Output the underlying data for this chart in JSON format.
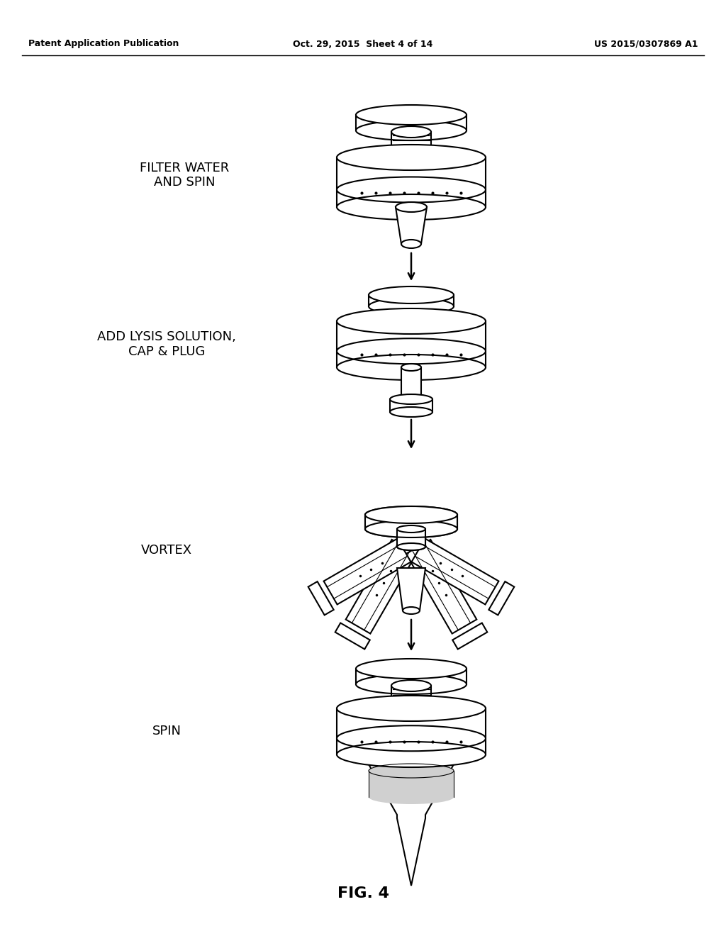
{
  "background_color": "#ffffff",
  "header_left": "Patent Application Publication",
  "header_center": "Oct. 29, 2015  Sheet 4 of 14",
  "header_right": "US 2015/0307869 A1",
  "footer": "FIG. 4",
  "labels": {
    "step1": "FILTER WATER\nAND SPIN",
    "step2": "ADD LYSIS SOLUTION,\nCAP & PLUG",
    "step3": "VORTEX",
    "step4": "SPIN"
  },
  "text_color": "#000000",
  "line_color": "#000000"
}
